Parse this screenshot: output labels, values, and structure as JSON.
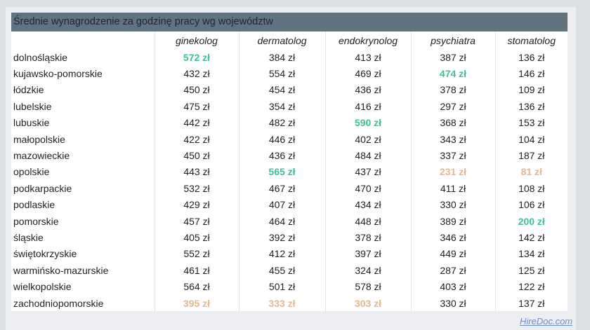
{
  "title": "Średnie wynagrodzenie za godzinę pracy wg województw",
  "footer": {
    "link": "HireDoc.com"
  },
  "colors": {
    "header_bg": "#627380",
    "max": "#3cbf9d",
    "min": "#e4b88a"
  },
  "chart_data": {
    "type": "table",
    "title": "Średnie wynagrodzenie za godzinę pracy wg województw",
    "unit": "zł",
    "columns": [
      "ginekolog",
      "dermatolog",
      "endokrynolog",
      "psychiatra",
      "stomatolog"
    ],
    "rows": [
      {
        "region": "dolnośląskie",
        "values": [
          572,
          384,
          413,
          387,
          136
        ]
      },
      {
        "region": "kujawsko-pomorskie",
        "values": [
          432,
          554,
          469,
          474,
          146
        ]
      },
      {
        "region": "łódzkie",
        "values": [
          450,
          454,
          436,
          378,
          109
        ]
      },
      {
        "region": "lubelskie",
        "values": [
          475,
          354,
          416,
          297,
          136
        ]
      },
      {
        "region": "lubuskie",
        "values": [
          442,
          482,
          590,
          368,
          153
        ]
      },
      {
        "region": "małopolskie",
        "values": [
          422,
          446,
          402,
          343,
          104
        ]
      },
      {
        "region": "mazowieckie",
        "values": [
          450,
          436,
          484,
          337,
          187
        ]
      },
      {
        "region": "opolskie",
        "values": [
          443,
          565,
          437,
          231,
          81
        ]
      },
      {
        "region": "podkarpackie",
        "values": [
          532,
          467,
          470,
          411,
          108
        ]
      },
      {
        "region": "podlaskie",
        "values": [
          429,
          407,
          434,
          330,
          106
        ]
      },
      {
        "region": "pomorskie",
        "values": [
          457,
          464,
          448,
          389,
          200
        ]
      },
      {
        "region": "śląskie",
        "values": [
          405,
          392,
          378,
          346,
          142
        ]
      },
      {
        "region": "świętokrzyskie",
        "values": [
          552,
          412,
          397,
          449,
          134
        ]
      },
      {
        "region": "warmińsko-mazurskie",
        "values": [
          461,
          455,
          324,
          287,
          125
        ]
      },
      {
        "region": "wielkopolskie",
        "values": [
          564,
          501,
          578,
          403,
          122
        ]
      },
      {
        "region": "zachodniopomorskie",
        "values": [
          395,
          333,
          303,
          330,
          137
        ]
      }
    ],
    "highlights": {
      "max": [
        [
          0,
          0
        ],
        [
          1,
          3
        ],
        [
          4,
          2
        ],
        [
          7,
          1
        ],
        [
          10,
          4
        ]
      ],
      "min": [
        [
          15,
          0
        ],
        [
          15,
          1
        ],
        [
          15,
          2
        ],
        [
          7,
          3
        ],
        [
          7,
          4
        ]
      ]
    }
  }
}
